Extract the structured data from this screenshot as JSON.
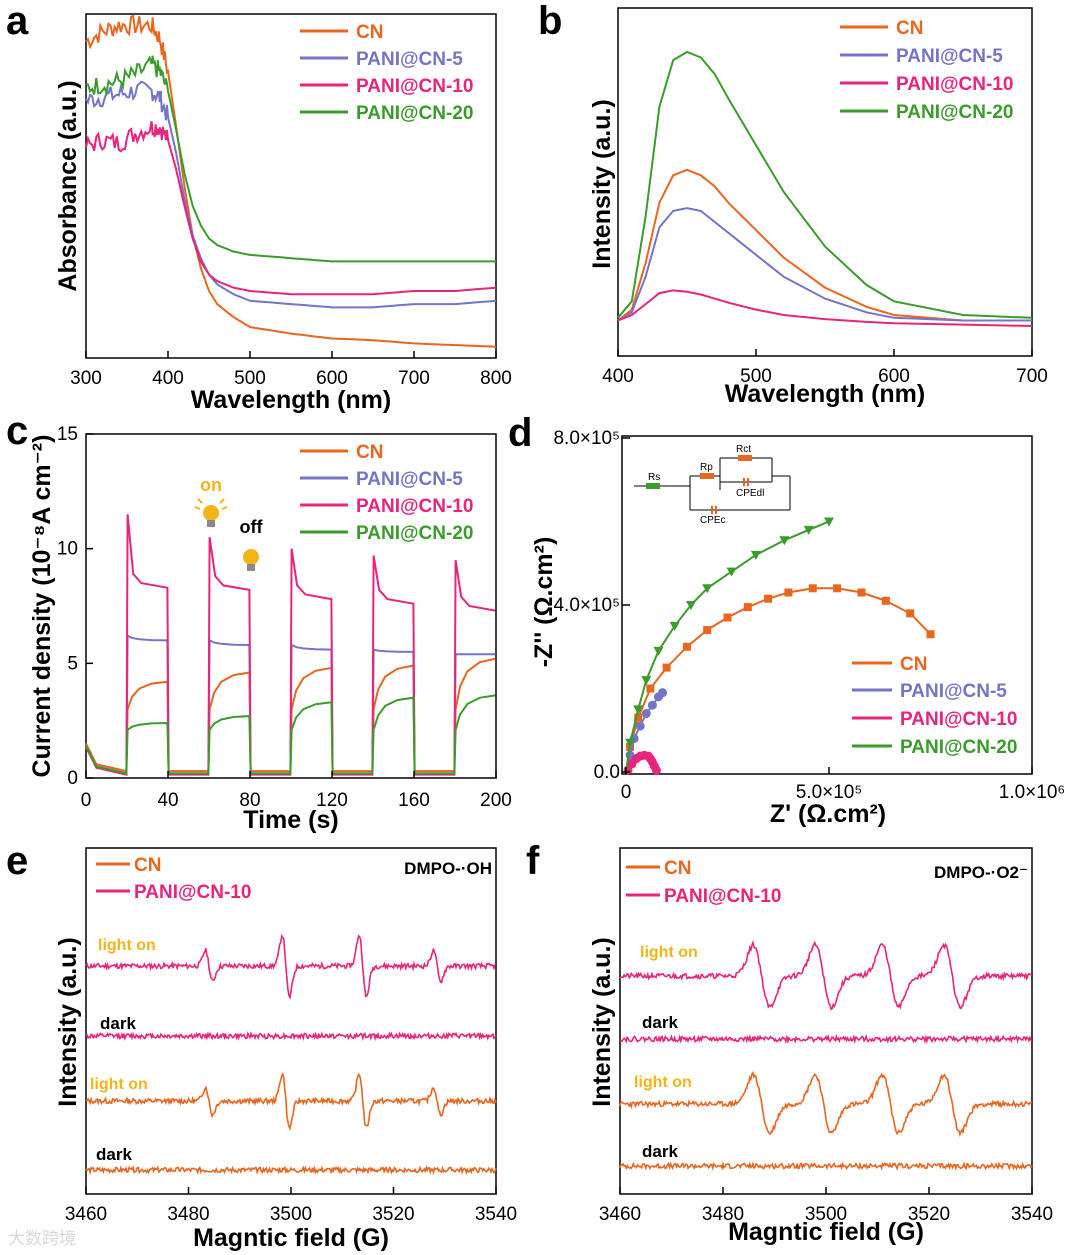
{
  "colors": {
    "CN": "#e8661e",
    "PANI@CN-5": "#7474c8",
    "PANI@CN-10": "#e8247c",
    "PANI@CN-20": "#3a9c2a",
    "bulb": "#f3b417"
  },
  "watermark": "大数跨境",
  "chart_data": [
    {
      "panel": "a",
      "type": "line",
      "xlabel": "Wavelength (nm)",
      "ylabel": "Absorbance (a.u.)",
      "xlim": [
        300,
        800
      ],
      "xticks": [
        "300",
        "400",
        "500",
        "600",
        "700",
        "800"
      ],
      "legend_position": "top-right",
      "series": [
        {
          "name": "CN",
          "x": [
            300,
            320,
            340,
            360,
            380,
            390,
            400,
            410,
            420,
            430,
            440,
            450,
            460,
            480,
            500,
            550,
            600,
            650,
            700,
            750,
            800
          ],
          "y": [
            0.94,
            0.97,
            0.99,
            0.99,
            0.99,
            0.95,
            0.85,
            0.68,
            0.5,
            0.35,
            0.25,
            0.18,
            0.14,
            0.1,
            0.07,
            0.05,
            0.035,
            0.03,
            0.02,
            0.015,
            0.01
          ]
        },
        {
          "name": "PANI@CN-5",
          "x": [
            300,
            320,
            340,
            360,
            380,
            390,
            400,
            410,
            420,
            430,
            440,
            450,
            460,
            480,
            500,
            550,
            600,
            650,
            700,
            750,
            800
          ],
          "y": [
            0.76,
            0.77,
            0.78,
            0.79,
            0.79,
            0.77,
            0.71,
            0.6,
            0.46,
            0.35,
            0.28,
            0.23,
            0.2,
            0.17,
            0.15,
            0.14,
            0.13,
            0.13,
            0.14,
            0.14,
            0.15
          ]
        },
        {
          "name": "PANI@CN-10",
          "x": [
            300,
            320,
            340,
            360,
            380,
            390,
            400,
            410,
            420,
            430,
            440,
            450,
            460,
            480,
            500,
            550,
            600,
            650,
            700,
            750,
            800
          ],
          "y": [
            0.62,
            0.64,
            0.63,
            0.66,
            0.68,
            0.68,
            0.64,
            0.55,
            0.44,
            0.34,
            0.27,
            0.23,
            0.21,
            0.19,
            0.18,
            0.17,
            0.17,
            0.17,
            0.18,
            0.18,
            0.19
          ]
        },
        {
          "name": "PANI@CN-20",
          "x": [
            300,
            320,
            340,
            360,
            380,
            390,
            400,
            410,
            420,
            430,
            440,
            450,
            460,
            480,
            500,
            550,
            600,
            650,
            700,
            750,
            800
          ],
          "y": [
            0.8,
            0.81,
            0.82,
            0.84,
            0.87,
            0.85,
            0.79,
            0.67,
            0.54,
            0.44,
            0.38,
            0.34,
            0.32,
            0.3,
            0.29,
            0.28,
            0.27,
            0.27,
            0.27,
            0.27,
            0.27
          ]
        }
      ]
    },
    {
      "panel": "b",
      "type": "line",
      "xlabel": "Wavelength (nm)",
      "ylabel": "Intensity (a.u.)",
      "xlim": [
        400,
        700
      ],
      "xticks": [
        "400",
        "500",
        "600",
        "700"
      ],
      "legend_position": "top-right",
      "series": [
        {
          "name": "CN",
          "x": [
            400,
            410,
            420,
            430,
            440,
            450,
            460,
            470,
            480,
            500,
            520,
            550,
            580,
            600,
            650,
            700
          ],
          "y": [
            0.02,
            0.06,
            0.23,
            0.45,
            0.55,
            0.57,
            0.55,
            0.51,
            0.45,
            0.35,
            0.25,
            0.14,
            0.07,
            0.04,
            0.02,
            0.02
          ]
        },
        {
          "name": "PANI@CN-5",
          "x": [
            400,
            410,
            420,
            430,
            440,
            450,
            460,
            470,
            480,
            500,
            520,
            550,
            580,
            600,
            650,
            700
          ],
          "y": [
            0.02,
            0.05,
            0.18,
            0.36,
            0.42,
            0.43,
            0.42,
            0.38,
            0.34,
            0.26,
            0.18,
            0.1,
            0.05,
            0.03,
            0.02,
            0.02
          ]
        },
        {
          "name": "PANI@CN-10",
          "x": [
            400,
            410,
            420,
            430,
            440,
            450,
            460,
            470,
            480,
            500,
            520,
            550,
            580,
            600,
            650,
            700
          ],
          "y": [
            0.02,
            0.04,
            0.08,
            0.12,
            0.13,
            0.125,
            0.115,
            0.1,
            0.085,
            0.06,
            0.04,
            0.025,
            0.015,
            0.01,
            0.005,
            0.0
          ]
        },
        {
          "name": "PANI@CN-20",
          "x": [
            400,
            410,
            420,
            430,
            440,
            450,
            460,
            470,
            480,
            500,
            520,
            550,
            580,
            600,
            650,
            700
          ],
          "y": [
            0.03,
            0.09,
            0.4,
            0.8,
            0.97,
            1.0,
            0.98,
            0.92,
            0.83,
            0.66,
            0.49,
            0.29,
            0.15,
            0.09,
            0.04,
            0.03
          ]
        }
      ]
    },
    {
      "panel": "c",
      "type": "line",
      "xlabel": "Time (s)",
      "ylabel": "Current density (10⁻⁸A cm⁻²)",
      "xlim": [
        0,
        200
      ],
      "ylim": [
        0,
        15
      ],
      "xticks": [
        "0",
        "40",
        "80",
        "120",
        "160",
        "200"
      ],
      "yticks": [
        "0",
        "5",
        "10",
        "15"
      ],
      "on_periods": [
        [
          20,
          40
        ],
        [
          60,
          80
        ],
        [
          100,
          120
        ],
        [
          140,
          160
        ],
        [
          180,
          200
        ]
      ],
      "annotations": {
        "on": "on",
        "off": "off"
      },
      "legend_position": "top-right",
      "series": [
        {
          "name": "CN",
          "dark": 0.3,
          "on_start": 3.0,
          "on_end": [
            4.2,
            4.6,
            4.8,
            4.9,
            5.2
          ]
        },
        {
          "name": "PANI@CN-5",
          "dark": 0.2,
          "on_start": 6.2,
          "on_end": [
            6.0,
            5.8,
            5.6,
            5.5,
            5.4
          ]
        },
        {
          "name": "PANI@CN-10",
          "dark": 0.15,
          "spike": [
            11.5,
            10.5,
            10.0,
            9.7,
            9.5
          ],
          "on_end": [
            8.3,
            8.2,
            7.8,
            7.6,
            7.3
          ]
        },
        {
          "name": "PANI@CN-20",
          "dark": 0.2,
          "on_start": 2.1,
          "on_end": [
            2.4,
            2.7,
            3.3,
            3.5,
            3.6
          ]
        }
      ]
    },
    {
      "panel": "d",
      "type": "scatter",
      "xlabel": "Z' (Ω.cm²)",
      "ylabel": "-Z'' (Ω.cm²)",
      "xlim": [
        0,
        1000000
      ],
      "ylim": [
        0,
        800000
      ],
      "xticks": [
        "0",
        "5.0×10⁵",
        "1.0×10⁶"
      ],
      "yticks": [
        "0.0",
        "4.0×10⁵",
        "8.0×10⁵"
      ],
      "circuit_labels": [
        "Rs",
        "Rp",
        "Rct",
        "CPEdl",
        "CPEc"
      ],
      "legend_position": "bottom-right",
      "series": [
        {
          "name": "CN",
          "marker": "square",
          "x": [
            10000,
            30000,
            60000,
            100000,
            150000,
            200000,
            250000,
            300000,
            350000,
            400000,
            460000,
            520000,
            580000,
            640000,
            700000,
            750000
          ],
          "y": [
            60000,
            130000,
            200000,
            250000,
            300000,
            340000,
            370000,
            395000,
            415000,
            430000,
            440000,
            440000,
            430000,
            410000,
            380000,
            330000
          ]
        },
        {
          "name": "PANI@CN-5",
          "marker": "circle",
          "x": [
            10000,
            20000,
            35000,
            50000,
            65000,
            80000,
            90000
          ],
          "y": [
            40000,
            80000,
            110000,
            140000,
            160000,
            180000,
            190000
          ]
        },
        {
          "name": "PANI@CN-10",
          "marker": "circle",
          "x": [
            5000,
            15000,
            25000,
            35000,
            45000,
            55000,
            60000,
            65000,
            70000,
            75000
          ],
          "y": [
            5000,
            20000,
            32000,
            38000,
            40000,
            38000,
            32000,
            24000,
            14000,
            4000
          ]
        },
        {
          "name": "PANI@CN-20",
          "marker": "triangle",
          "x": [
            10000,
            30000,
            50000,
            80000,
            120000,
            160000,
            200000,
            260000,
            320000,
            390000,
            450000,
            500000
          ],
          "y": [
            70000,
            150000,
            220000,
            290000,
            350000,
            400000,
            440000,
            480000,
            520000,
            555000,
            580000,
            600000
          ]
        }
      ]
    },
    {
      "panel": "e",
      "type": "line",
      "title": "DMPO-·OH",
      "xlabel": "Magntic field (G)",
      "ylabel": "Intensity (a.u.)",
      "xlim": [
        3460,
        3540
      ],
      "xticks": [
        "3460",
        "3480",
        "3500",
        "3520",
        "3540"
      ],
      "labels": {
        "light_on": "light on",
        "dark": "dark"
      },
      "peak_centers": [
        3484,
        3499,
        3514,
        3528.5
      ],
      "peak_ratios": [
        1,
        2,
        2,
        1
      ],
      "legend_position": "top-left",
      "series": [
        {
          "name": "CN"
        },
        {
          "name": "PANI@CN-10"
        }
      ]
    },
    {
      "panel": "f",
      "type": "line",
      "title": "DMPO-·O2⁻",
      "xlabel": "Magntic field (G)",
      "ylabel": "Intensity (a.u.)",
      "xlim": [
        3460,
        3540
      ],
      "xticks": [
        "3460",
        "3480",
        "3500",
        "3520",
        "3540"
      ],
      "labels": {
        "light_on": "light on",
        "dark": "dark"
      },
      "peak_centers": [
        3487.5,
        3499.5,
        3512.5,
        3524.5
      ],
      "legend_position": "top-left",
      "series": [
        {
          "name": "CN"
        },
        {
          "name": "PANI@CN-10"
        }
      ]
    }
  ]
}
